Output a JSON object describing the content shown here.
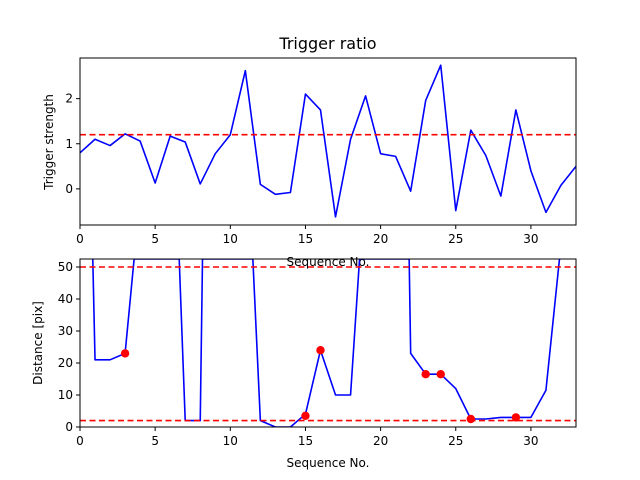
{
  "colors": {
    "line": "#0000ff",
    "threshold": "#ff0000",
    "marker": "#ff0000",
    "axes": "#000000"
  },
  "chart_data": [
    {
      "type": "line",
      "title": "Trigger ratio",
      "xlabel": "Sequence No.",
      "ylabel": "Trigger strength",
      "xlim": [
        0,
        33
      ],
      "ylim": [
        -0.8,
        2.9
      ],
      "xticks": [
        0,
        5,
        10,
        15,
        20,
        25,
        30
      ],
      "yticks": [
        0,
        1,
        2
      ],
      "grid": false,
      "hlines": [
        1.2
      ],
      "series": [
        {
          "x": [
            0,
            1,
            2,
            3,
            4,
            5,
            6,
            7,
            8,
            9,
            10,
            11,
            12,
            13,
            14,
            15,
            16,
            17,
            18,
            19,
            20,
            21,
            22,
            23,
            24,
            25,
            26,
            27,
            28,
            29,
            30,
            31,
            32,
            33
          ],
          "values": [
            0.8,
            1.1,
            0.96,
            1.22,
            1.06,
            0.13,
            1.17,
            1.04,
            0.11,
            0.78,
            1.2,
            2.62,
            0.1,
            -0.12,
            -0.08,
            2.1,
            1.75,
            -0.62,
            1.1,
            2.06,
            0.78,
            0.72,
            -0.05,
            1.96,
            2.74,
            -0.48,
            1.3,
            0.74,
            -0.16,
            1.75,
            0.4,
            -0.52,
            0.08,
            0.5
          ]
        }
      ]
    },
    {
      "type": "line",
      "title": "",
      "xlabel": "Sequence No.",
      "ylabel": "Distance [pix]",
      "xlim": [
        0,
        33
      ],
      "ylim": [
        0,
        52.5
      ],
      "xticks": [
        0,
        5,
        10,
        15,
        20,
        25,
        30
      ],
      "yticks": [
        0,
        10,
        20,
        30,
        40,
        50
      ],
      "grid": false,
      "hlines": [
        50,
        2
      ],
      "series": [
        {
          "x": [
            0.85,
            1,
            2,
            3,
            3.6,
            6.6,
            7,
            8,
            8.15,
            11.5,
            12,
            13,
            14,
            15,
            16,
            17,
            18,
            18.6,
            21.9,
            22,
            23,
            24,
            25,
            26,
            27,
            28,
            29,
            30,
            31,
            31.9
          ],
          "values": [
            52.5,
            21,
            21,
            23,
            52.5,
            52.5,
            2,
            2,
            52.5,
            52.5,
            2,
            0,
            0,
            4,
            24,
            10,
            10,
            52.5,
            52.5,
            23,
            16.5,
            16.5,
            12,
            2.5,
            2.5,
            3,
            3,
            3,
            11.5,
            52.5
          ]
        }
      ],
      "markers": {
        "x": [
          3,
          15,
          16,
          23,
          24,
          26,
          29
        ],
        "values": [
          23,
          3.5,
          24,
          16.5,
          16.5,
          2.5,
          3
        ]
      }
    }
  ]
}
